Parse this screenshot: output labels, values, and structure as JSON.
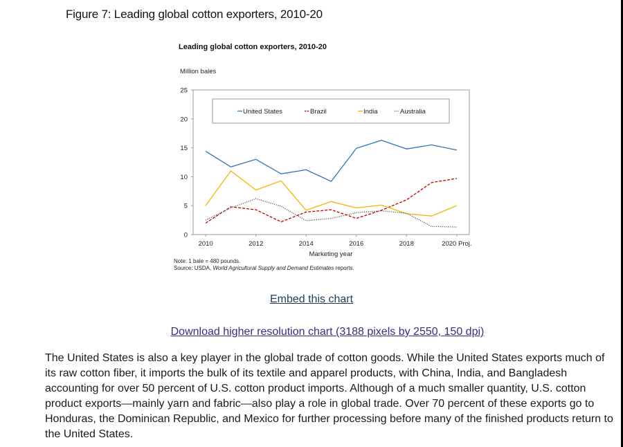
{
  "page": {
    "figure_title": "Figure 7: Leading global cotton exporters, 2010-20",
    "embed_link": "Embed this chart",
    "download_link": "Download higher resolution chart (3188 pixels by 2550, 150 dpi)",
    "paragraph": "The United States is also a key player in the global trade of cotton goods. While the United States exports much of its raw cotton fiber, it imports the bulk of its textile and apparel products, with China, India, and Bangladesh accounting for over 50 percent of U.S. cotton product imports. Although of a much smaller quantity, U.S. cotton product exports—mainly yarn and fabric—also play a role in global trade. Over 70 percent of these exports go to Honduras, the Dominican Republic, and Mexico for further processing before many of the finished products return to the United States."
  },
  "chart_data": {
    "type": "line",
    "title": "Leading global cotton exporters, 2010-20",
    "ylabel": "Million bales",
    "xlabel": "Marketing year",
    "x": [
      2010,
      2011,
      2012,
      2013,
      2014,
      2015,
      2016,
      2017,
      2018,
      2019,
      2020
    ],
    "x_tick_labels": [
      "2010",
      "2012",
      "2014",
      "2016",
      "2018",
      "2020 Proj."
    ],
    "x_tick_values": [
      2010,
      2012,
      2014,
      2016,
      2018,
      2020
    ],
    "ylim": [
      0,
      25
    ],
    "y_ticks": [
      0,
      5,
      10,
      15,
      20,
      25
    ],
    "grid": false,
    "legend_position": "top",
    "series": [
      {
        "name": "United States",
        "color": "#2e75b6",
        "dash": "solid",
        "values": [
          14.4,
          11.7,
          13.0,
          10.5,
          11.2,
          9.2,
          14.9,
          16.3,
          14.8,
          15.5,
          14.6
        ]
      },
      {
        "name": "Brazil",
        "color": "#c00000",
        "dash": "dashed",
        "values": [
          2.0,
          4.8,
          4.3,
          2.2,
          3.9,
          4.3,
          2.8,
          4.2,
          6.0,
          9.0,
          9.7
        ]
      },
      {
        "name": "India",
        "color": "#f4b400",
        "dash": "solid",
        "values": [
          5.0,
          11.0,
          7.7,
          9.3,
          4.2,
          5.7,
          4.6,
          5.1,
          3.6,
          3.2,
          5.0
        ]
      },
      {
        "name": "Australia",
        "color": "#595959",
        "dash": "dotted",
        "values": [
          2.5,
          4.6,
          6.2,
          4.9,
          2.4,
          2.8,
          3.8,
          4.1,
          3.7,
          1.4,
          1.3
        ]
      }
    ],
    "notes": {
      "note": "Note: 1 bale = 480 pounds.",
      "source_prefix": "Source: USDA, ",
      "source_title": "World Agricultural Supply and Demand Estimates",
      "source_suffix": " reports."
    }
  }
}
